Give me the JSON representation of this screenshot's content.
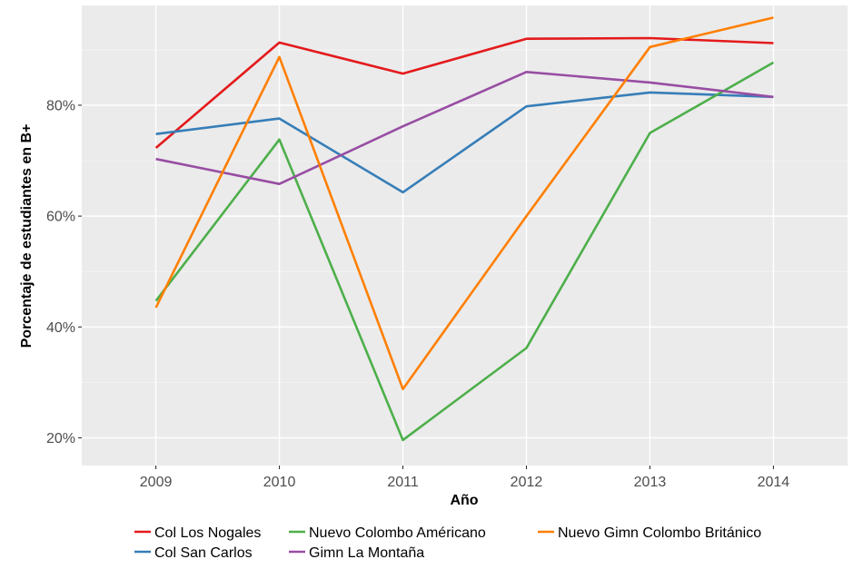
{
  "chart_data": {
    "type": "line",
    "title": "",
    "xlabel": "Año",
    "ylabel": "Porcentaje de estudiantes en B+",
    "x": [
      "2009",
      "2010",
      "2011",
      "2012",
      "2013",
      "2014"
    ],
    "ylim": [
      0.15,
      0.98
    ],
    "yticks": [
      0.2,
      0.4,
      0.6,
      0.8
    ],
    "ytick_labels": [
      "20%",
      "40%",
      "60%",
      "80%"
    ],
    "grid": true,
    "legend_position": "bottom",
    "series": [
      {
        "name": "Col Los Nogales",
        "color": "#E41A1C",
        "values": [
          0.723,
          0.913,
          0.857,
          0.92,
          0.921,
          0.912
        ]
      },
      {
        "name": "Col San Carlos",
        "color": "#377EB8",
        "values": [
          0.748,
          0.776,
          0.643,
          0.798,
          0.823,
          0.815
        ]
      },
      {
        "name": "Nuevo Colombo Américano",
        "color": "#4DAF4A",
        "values": [
          0.447,
          0.738,
          0.196,
          0.362,
          0.75,
          0.877
        ]
      },
      {
        "name": "Gimn La Montaña",
        "color": "#984EA3",
        "values": [
          0.703,
          0.658,
          0.762,
          0.86,
          0.841,
          0.815
        ]
      },
      {
        "name": "Nuevo Gimn Colombo Británico",
        "color": "#FF7F00",
        "values": [
          0.435,
          0.887,
          0.288,
          0.6,
          0.905,
          0.958
        ]
      }
    ]
  }
}
